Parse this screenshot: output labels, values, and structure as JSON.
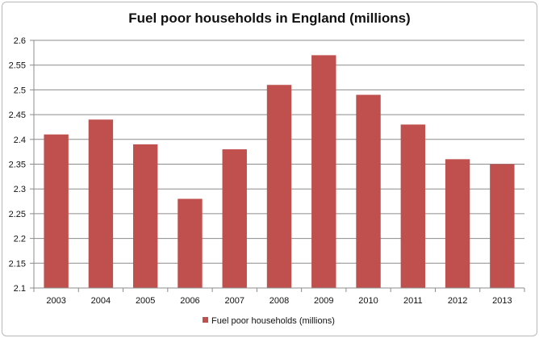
{
  "chart_data": {
    "type": "bar",
    "title": "Fuel poor households in England (millions)",
    "xlabel": "",
    "ylabel": "",
    "categories": [
      "2003",
      "2004",
      "2005",
      "2006",
      "2007",
      "2008",
      "2009",
      "2010",
      "2011",
      "2012",
      "2013"
    ],
    "series": [
      {
        "name": "Fuel poor households (millions)",
        "values": [
          2.41,
          2.44,
          2.39,
          2.28,
          2.38,
          2.51,
          2.57,
          2.49,
          2.43,
          2.36,
          2.35
        ],
        "color": "#c0504d"
      }
    ],
    "ylim": [
      2.1,
      2.6
    ],
    "yticks": [
      "2.1",
      "2.15",
      "2.2",
      "2.25",
      "2.3",
      "2.35",
      "2.4",
      "2.45",
      "2.5",
      "2.55",
      "2.6"
    ],
    "grid": true,
    "legend_position": "bottom",
    "colors": {
      "bar": "#c0504d",
      "grid": "#8c8c8c",
      "axis": "#8c8c8c"
    }
  }
}
